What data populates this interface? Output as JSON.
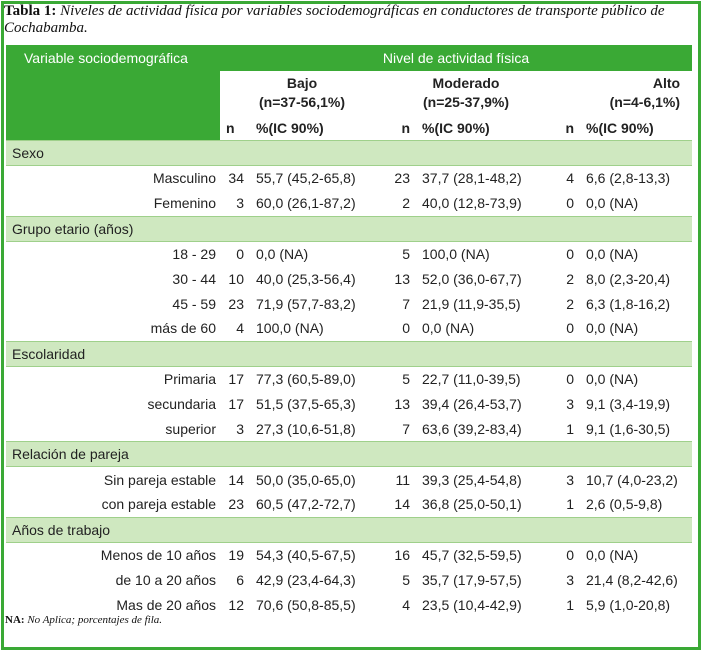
{
  "caption": {
    "label": "Tabla 1:",
    "text": " Niveles de actividad física por variables sociodemográficas en conductores de transporte público de Cochabamba."
  },
  "header": {
    "variable": "Variable sociodemográfica",
    "nivel": "Nivel de actividad física",
    "groups": [
      {
        "name": "Bajo",
        "sub": "(n=37-56,1%)"
      },
      {
        "name": "Moderado",
        "sub": "(n=25-37,9%)"
      },
      {
        "name": "Alto",
        "sub": "(n=4-6,1%)"
      }
    ],
    "n_label": "n",
    "pct_label": "%(IC 90%)"
  },
  "sections": [
    {
      "title": "Sexo",
      "rows": [
        {
          "label": "Masculino",
          "cells": [
            "34",
            "55,7 (45,2-65,8)",
            "23",
            "37,7 (28,1-48,2)",
            "4",
            "6,6 (2,8-13,3)"
          ]
        },
        {
          "label": "Femenino",
          "cells": [
            "3",
            "60,0 (26,1-87,2)",
            "2",
            "40,0 (12,8-73,9)",
            "0",
            "0,0 (NA)"
          ]
        }
      ]
    },
    {
      "title": "Grupo etario (años)",
      "rows": [
        {
          "label": "18 - 29",
          "cells": [
            "0",
            "0,0 (NA)",
            "5",
            "100,0 (NA)",
            "0",
            "0,0 (NA)"
          ]
        },
        {
          "label": "30 - 44",
          "cells": [
            "10",
            "40,0 (25,3-56,4)",
            "13",
            "52,0 (36,0-67,7)",
            "2",
            "8,0 (2,3-20,4)"
          ]
        },
        {
          "label": "45 - 59",
          "cells": [
            "23",
            "71,9 (57,7-83,2)",
            "7",
            "21,9 (11,9-35,5)",
            "2",
            "6,3 (1,8-16,2)"
          ]
        },
        {
          "label": "más de 60",
          "cells": [
            "4",
            "100,0 (NA)",
            "0",
            "0,0 (NA)",
            "0",
            "0,0 (NA)"
          ]
        }
      ]
    },
    {
      "title": "Escolaridad",
      "rows": [
        {
          "label": "Primaria",
          "cells": [
            "17",
            "77,3 (60,5-89,0)",
            "5",
            "22,7 (11,0-39,5)",
            "0",
            "0,0 (NA)"
          ]
        },
        {
          "label": "secundaria",
          "cells": [
            "17",
            "51,5 (37,5-65,3)",
            "13",
            "39,4 (26,4-53,7)",
            "3",
            "9,1 (3,4-19,9)"
          ]
        },
        {
          "label": "superior",
          "cells": [
            "3",
            "27,3 (10,6-51,8)",
            "7",
            "63,6 (39,2-83,4)",
            "1",
            "9,1 (1,6-30,5)"
          ]
        }
      ]
    },
    {
      "title": "Relación de pareja",
      "rows": [
        {
          "label": "Sin pareja estable",
          "cells": [
            "14",
            "50,0 (35,0-65,0)",
            "11",
            "39,3 (25,4-54,8)",
            "3",
            "10,7 (4,0-23,2)"
          ]
        },
        {
          "label": "con pareja estable",
          "cells": [
            "23",
            "60,5 (47,2-72,7)",
            "14",
            "36,8 (25,0-50,1)",
            "1",
            "2,6 (0,5-9,8)"
          ]
        }
      ]
    },
    {
      "title": "Años de trabajo",
      "rows": [
        {
          "label": "Menos de 10 años",
          "cells": [
            "19",
            "54,3 (40,5-67,5)",
            "16",
            "45,7 (32,5-59,5)",
            "0",
            "0,0 (NA)"
          ]
        },
        {
          "label": "de 10 a 20 años",
          "cells": [
            "6",
            "42,9 (23,4-64,3)",
            "5",
            "35,7 (17,9-57,5)",
            "3",
            "21,4 (8,2-42,6)"
          ]
        },
        {
          "label": "Mas de 20 años",
          "cells": [
            "12",
            "70,6 (50,8-85,5)",
            "4",
            "23,5 (10,4-42,9)",
            "1",
            "5,9 (1,0-20,8)"
          ]
        }
      ]
    }
  ],
  "note": {
    "label": "NA:",
    "text": " No Aplica; porcentajes de fila."
  },
  "colors": {
    "accent": "#3aa935",
    "band": "#cfe8c0"
  }
}
